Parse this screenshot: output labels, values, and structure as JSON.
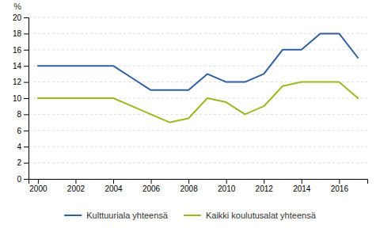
{
  "chart_data": {
    "type": "line",
    "x": [
      2000,
      2001,
      2002,
      2003,
      2004,
      2005,
      2006,
      2007,
      2008,
      2009,
      2010,
      2011,
      2012,
      2013,
      2014,
      2015,
      2016,
      2017
    ],
    "series": [
      {
        "name": "Kulttuuriala yhteensä",
        "color": "#3060A0",
        "values": [
          14,
          14,
          14,
          14,
          14,
          12.5,
          11,
          11,
          11,
          13,
          12,
          12,
          13,
          16,
          16,
          18,
          18,
          15
        ]
      },
      {
        "name": "Kaikki koulutusalat yhteensä",
        "color": "#99BB22",
        "values": [
          10,
          10,
          10,
          10,
          10,
          9,
          8,
          7,
          7.5,
          10,
          9.5,
          8,
          9,
          11.5,
          12,
          12,
          12,
          10
        ]
      }
    ],
    "xlim": [
      1999.5,
      2017.5
    ],
    "xticks": [
      2000,
      2002,
      2004,
      2006,
      2008,
      2010,
      2012,
      2014,
      2016
    ],
    "ylim": [
      0,
      20
    ],
    "yticks": [
      0,
      2,
      4,
      6,
      8,
      10,
      12,
      14,
      16,
      18,
      20
    ],
    "y_label": "%",
    "grid": true,
    "legend": "bottom"
  }
}
